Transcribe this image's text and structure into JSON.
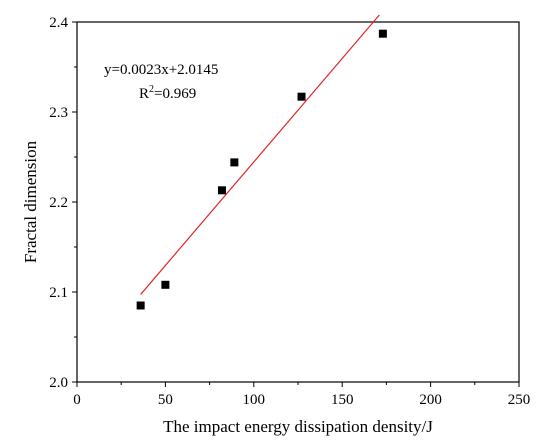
{
  "chart_data": {
    "type": "scatter",
    "title": "",
    "xlabel": "The impact energy dissipation density/J",
    "ylabel": "Fractal dimension",
    "xlim": [
      0,
      250
    ],
    "ylim": [
      2.0,
      2.4
    ],
    "x_ticks": [
      "0",
      "50",
      "100",
      "150",
      "200",
      "250"
    ],
    "y_ticks": [
      "2.0",
      "2.1",
      "2.2",
      "2.3",
      "2.4"
    ],
    "grid": false,
    "legend": "none",
    "series": [
      {
        "marker": "square",
        "color": "#000000",
        "points": [
          {
            "x": 36,
            "y": 2.085
          },
          {
            "x": 50,
            "y": 2.108
          },
          {
            "x": 82,
            "y": 2.213
          },
          {
            "x": 89,
            "y": 2.244
          },
          {
            "x": 127,
            "y": 2.317
          },
          {
            "x": 173,
            "y": 2.387
          }
        ]
      }
    ],
    "fit_line": {
      "color": "#e32626",
      "slope": 0.0023,
      "intercept": 2.0145,
      "x_range": [
        36,
        171
      ]
    },
    "annotations": {
      "equation": "y=0.0023x+2.0145",
      "r2_prefix": "R",
      "r2_sup": "2",
      "r2_value": "=0.969"
    }
  }
}
